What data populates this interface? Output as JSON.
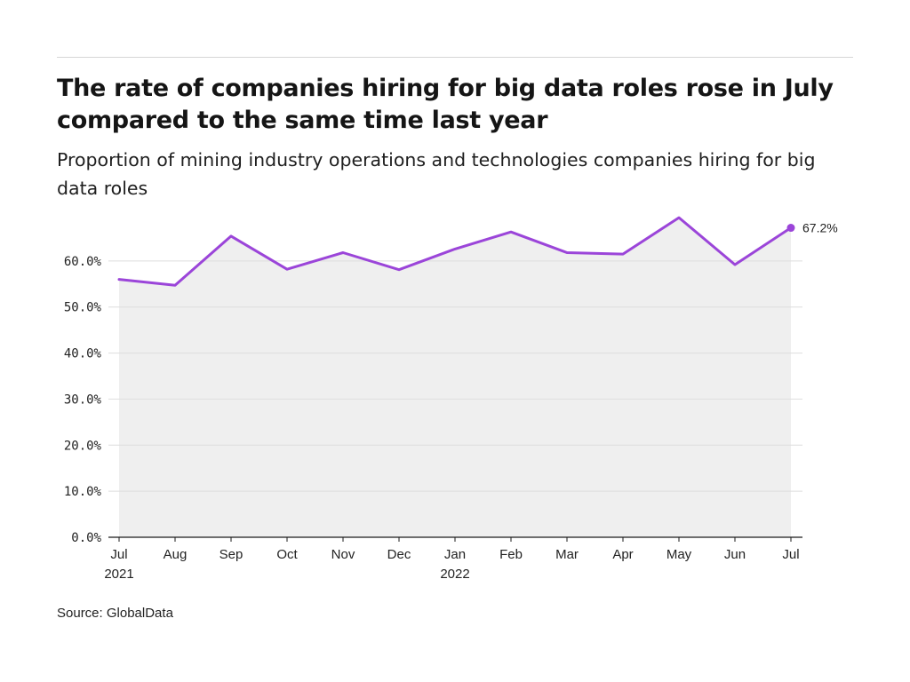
{
  "header": {
    "title": "The rate of companies hiring for big data roles rose in July compared to the same time last year",
    "subtitle": "Proportion of mining industry operations and technologies companies hiring for big data roles"
  },
  "footer": {
    "source": "Source: GlobalData"
  },
  "colors": {
    "line": "#9b45d9",
    "area": "#efefef",
    "grid": "#dedede",
    "axis": "#1a1a1a"
  },
  "chart_data": {
    "type": "area",
    "categories": [
      "Jul",
      "Aug",
      "Sep",
      "Oct",
      "Nov",
      "Dec",
      "Jan",
      "Feb",
      "Mar",
      "Apr",
      "May",
      "Jun",
      "Jul"
    ],
    "year_labels": [
      "2021",
      "",
      "",
      "",
      "",
      "",
      "2022",
      "",
      "",
      "",
      "",
      "",
      ""
    ],
    "series": [
      {
        "values": [
          56.0,
          54.7,
          65.4,
          58.2,
          61.8,
          58.1,
          62.6,
          66.3,
          61.8,
          61.5,
          69.4,
          59.2,
          67.2
        ]
      }
    ],
    "ylim": [
      0,
      70
    ],
    "yticks": [
      0,
      10,
      20,
      30,
      40,
      50,
      60
    ],
    "ytick_labels": [
      "0.0%",
      "10.0%",
      "20.0%",
      "30.0%",
      "40.0%",
      "50.0%",
      "60.0%"
    ],
    "end_label": "67.2%",
    "grid": true,
    "xlabel": "",
    "ylabel": ""
  }
}
